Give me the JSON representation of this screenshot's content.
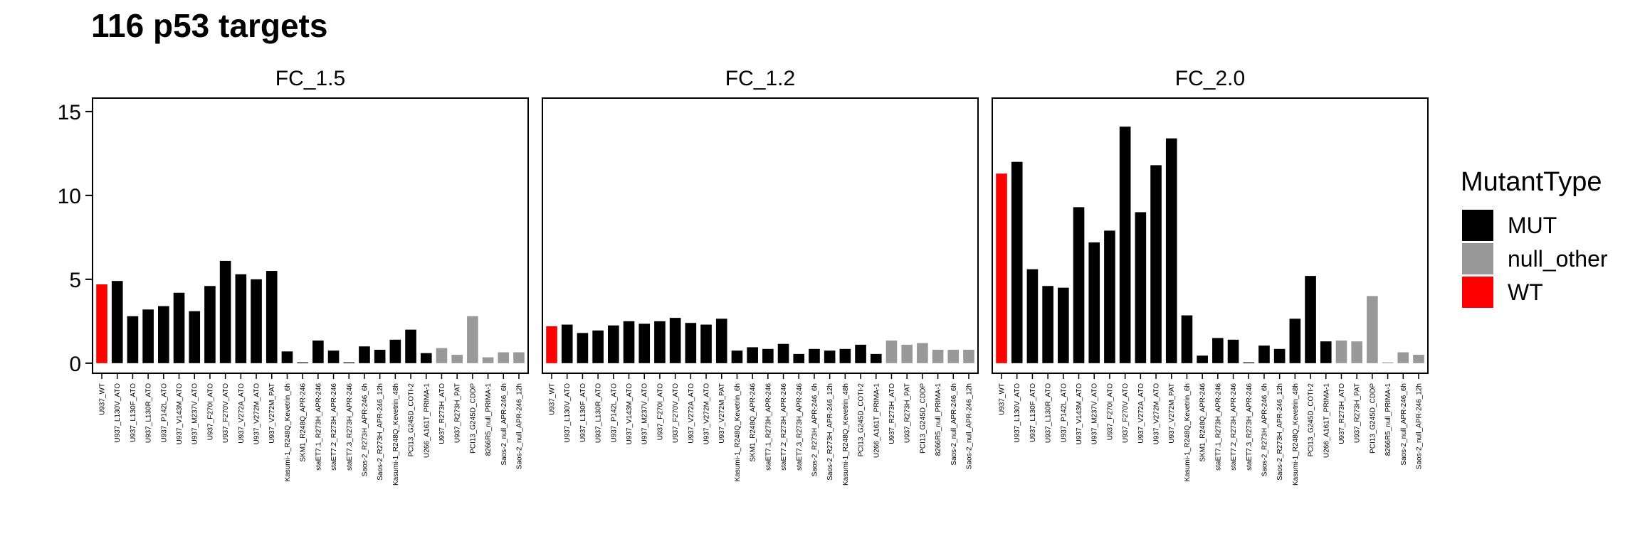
{
  "title": "116 p53 targets",
  "chart_data": {
    "type": "bar",
    "title": "116 p53 targets",
    "xlabel": "",
    "ylabel": "",
    "ylim": [
      -0.6,
      15.8
    ],
    "yticks": [
      0,
      5,
      10,
      15
    ],
    "grid": false,
    "legend": {
      "title": "MutantType",
      "placement": "right",
      "entries": [
        {
          "name": "MUT",
          "color": "#000000"
        },
        {
          "name": "null_other",
          "color": "#999999"
        },
        {
          "name": "WT",
          "color": "#ff0000"
        }
      ]
    },
    "categories": [
      "U937_WT",
      "U937_L130V_ATO",
      "U937_L130F_ATO",
      "U937_L130R_ATO",
      "U937_P142L_ATO",
      "U937_V143M_ATO",
      "U937_M237V_ATO",
      "U937_F270I_ATO",
      "U937_F270V_ATO",
      "U937_V272A_ATO",
      "U937_V272M_ATO",
      "U937_V272M_PAT",
      "Kasumi-1_R248Q_Kevetrin_6h",
      "SKM1_R248Q_APR-246",
      "staET7.1_R273H_APR-246",
      "staET7.2_R273H_APR-246",
      "staET7.3_R273H_APR-246",
      "Saos-2_R273H_APR-246_6h",
      "Saos-2_R273H_APR-246_12h",
      "Kasumi-1_R248Q_Kevetrin_48h",
      "PCI13_G245D_COTI-2",
      "U266_A161T_PRIMA-1",
      "U937_R273H_ATO",
      "U937_R273H_PAT",
      "PCI13_G245D_CDDP",
      "8266R5_null_PRIMA-1",
      "Saos-2_null_APR-246_6h",
      "Saos-2_null_APR-246_12h"
    ],
    "mutant_type": [
      "WT",
      "MUT",
      "MUT",
      "MUT",
      "MUT",
      "MUT",
      "MUT",
      "MUT",
      "MUT",
      "MUT",
      "MUT",
      "MUT",
      "MUT",
      "MUT",
      "MUT",
      "MUT",
      "MUT",
      "MUT",
      "MUT",
      "MUT",
      "MUT",
      "MUT",
      "null_other",
      "null_other",
      "null_other",
      "null_other",
      "null_other",
      "null_other"
    ],
    "facets": [
      {
        "name": "FC_1.5",
        "values": [
          4.7,
          4.9,
          2.8,
          3.2,
          3.4,
          4.2,
          3.1,
          4.6,
          6.1,
          5.3,
          5.0,
          5.5,
          0.7,
          0.05,
          1.35,
          0.75,
          0.05,
          1.0,
          0.8,
          1.4,
          2.0,
          0.6,
          0.9,
          0.5,
          2.8,
          0.35,
          0.65,
          0.65
        ]
      },
      {
        "name": "FC_1.2",
        "values": [
          2.2,
          2.3,
          1.8,
          1.95,
          2.25,
          2.5,
          2.35,
          2.5,
          2.7,
          2.4,
          2.3,
          2.65,
          0.75,
          0.95,
          0.85,
          1.15,
          0.55,
          0.85,
          0.75,
          0.85,
          1.1,
          0.55,
          1.35,
          1.1,
          1.2,
          0.8,
          0.8,
          0.8
        ]
      },
      {
        "name": "FC_2.0",
        "values": [
          11.3,
          12.0,
          5.6,
          4.6,
          4.5,
          9.3,
          7.2,
          7.9,
          14.1,
          9.0,
          11.8,
          13.4,
          2.85,
          0.45,
          1.5,
          1.4,
          0.05,
          1.05,
          0.85,
          2.65,
          5.2,
          1.3,
          1.35,
          1.3,
          4.0,
          0.05,
          0.65,
          0.5
        ]
      }
    ]
  }
}
